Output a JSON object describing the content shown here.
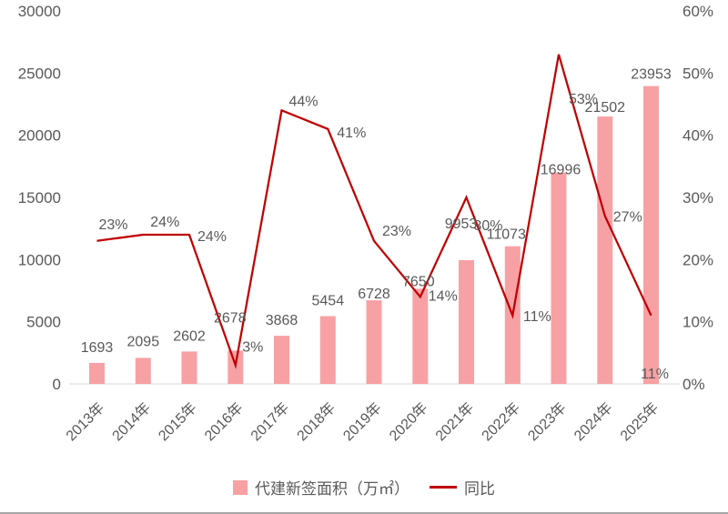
{
  "chart_data": {
    "type": "combo",
    "title": "",
    "categories": [
      "2013年",
      "2014年",
      "2015年",
      "2016年",
      "2017年",
      "2018年",
      "2019年",
      "2020年",
      "2021年",
      "2022年",
      "2023年",
      "2024年",
      "2025年"
    ],
    "series": [
      {
        "name": "代建新签面积（万㎡）",
        "type": "bar",
        "axis": "left",
        "color": "#F7A1A5",
        "values": [
          1693,
          2095,
          2602,
          2678,
          3868,
          5454,
          6728,
          7650,
          9953,
          11073,
          16996,
          21502,
          23953
        ],
        "labels": [
          "1693",
          "2095",
          "2602",
          "2678",
          "3868",
          "5454",
          "6728",
          "7650",
          "9953",
          "11073",
          "16996",
          "21502",
          "23953"
        ]
      },
      {
        "name": "同比",
        "type": "line",
        "axis": "right",
        "color": "#C00000",
        "values": [
          23,
          24,
          24,
          3,
          44,
          41,
          23,
          14,
          30,
          11,
          53,
          27,
          11
        ],
        "labels": [
          "23%",
          "24%",
          "24%",
          "3%",
          "44%",
          "41%",
          "23%",
          "14%",
          "30%",
          "11%",
          "53%",
          "27%",
          "11%"
        ]
      }
    ],
    "y_axis_left": {
      "min": 0,
      "max": 30000,
      "tick_labels": [
        "0",
        "5000",
        "10000",
        "15000",
        "20000",
        "25000",
        "30000"
      ]
    },
    "y_axis_right": {
      "min": 0,
      "max": 60,
      "tick_labels": [
        "0%",
        "10%",
        "20%",
        "30%",
        "40%",
        "50%",
        "60%"
      ]
    },
    "gridlines": false,
    "legend_position": "bottom",
    "colors": {
      "text": "#595959",
      "axis_line": "#D9D9D9",
      "frame_border": "#A6A6A6",
      "background": "#FFFFFF"
    }
  }
}
